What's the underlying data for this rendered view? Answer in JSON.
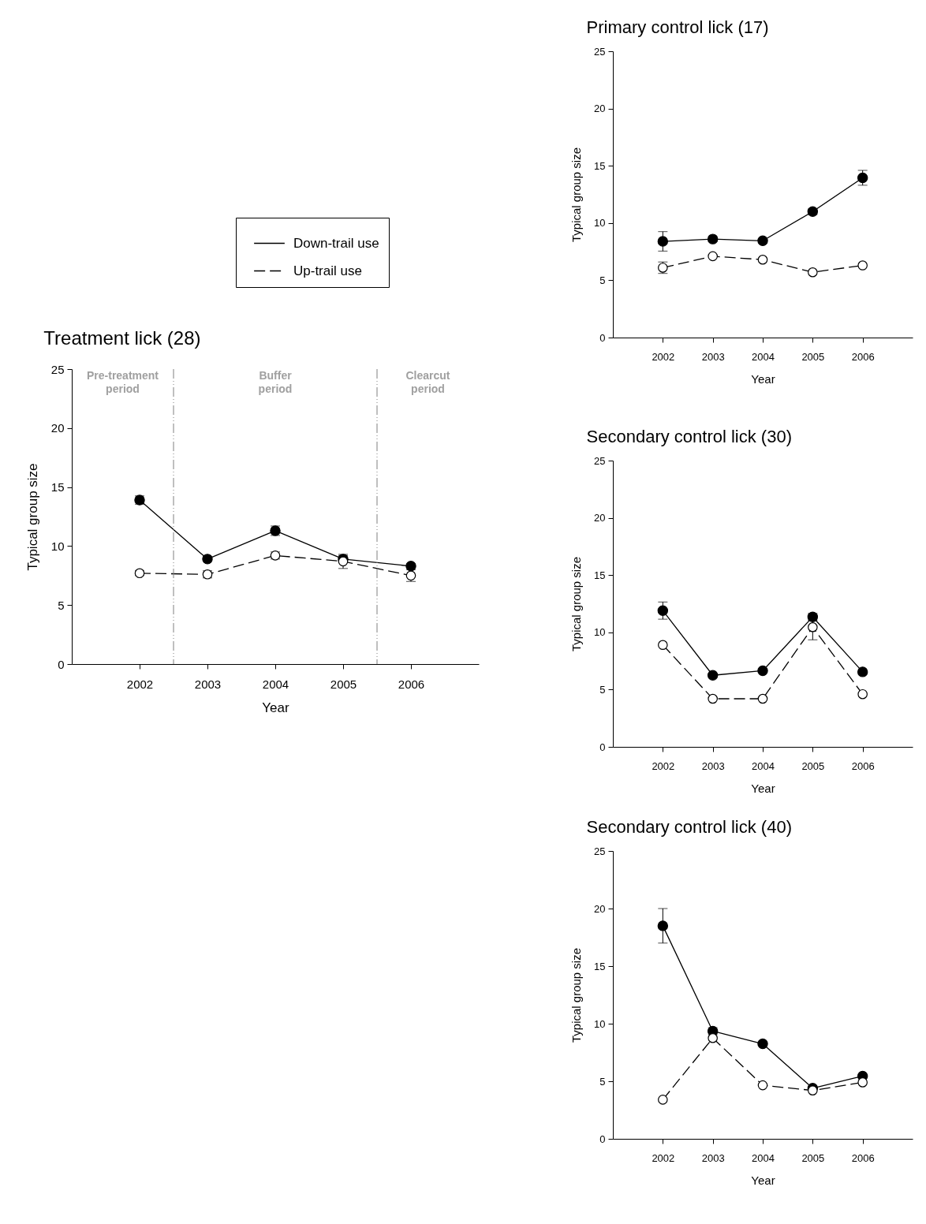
{
  "chart_data": [
    {
      "type": "line",
      "title": "Treatment lick (28)",
      "xlabel": "Year",
      "ylabel": "Typical group size",
      "x": [
        2002,
        2003,
        2004,
        2005,
        2006
      ],
      "xlim": [
        2001,
        2007
      ],
      "xticks": [
        2002,
        2003,
        2004,
        2005,
        2006
      ],
      "ylim": [
        0,
        25
      ],
      "yticks": [
        0,
        5,
        10,
        15,
        20,
        25
      ],
      "marker": "circle",
      "legend": "top right",
      "grid": false,
      "series": [
        {
          "name": "Down-trail use",
          "color": "#000000",
          "line_style": "solid",
          "values": [
            13.9,
            8.9,
            11.3,
            8.9,
            8.3
          ],
          "errors": [
            0.35,
            0.2,
            0.4,
            0.3,
            0.2
          ]
        },
        {
          "name": "Up-trail use",
          "color": "#000000",
          "line_style": "dashed",
          "values": [
            7.7,
            7.6,
            9.2,
            8.7,
            7.5
          ],
          "errors": [
            0.2,
            0.3,
            0.3,
            0.6,
            0.5
          ]
        }
      ],
      "ref_lines": [
        {
          "axis": "x",
          "value": 2002.5,
          "line_style": "dashed",
          "color": "#808080"
        },
        {
          "axis": "x",
          "value": 2005.5,
          "line_style": "dashed",
          "color": "#808080"
        }
      ],
      "annotations": [
        "Pre-treatment period",
        "Buffer period",
        "Clearcut period"
      ]
    },
    {
      "type": "line",
      "title": "Primary control lick (17)",
      "xlabel": "Year",
      "ylabel": "Typical group size",
      "x": [
        2002,
        2003,
        2004,
        2005,
        2006
      ],
      "xlim": [
        2001,
        2007
      ],
      "xticks": [
        2002,
        2003,
        2004,
        2005,
        2006
      ],
      "ylim": [
        0,
        25
      ],
      "yticks": [
        0,
        5,
        10,
        15,
        20,
        25
      ],
      "marker": "circle",
      "grid": false,
      "series": [
        {
          "color": "#000000",
          "line_style": "solid",
          "values": [
            8.4,
            8.6,
            8.45,
            11.0,
            13.95
          ],
          "errors": [
            0.85,
            0.2,
            0.2,
            0.25,
            0.65
          ]
        },
        {
          "color": "#000000",
          "line_style": "dashed",
          "values": [
            6.1,
            7.1,
            6.8,
            5.7,
            6.3
          ],
          "errors": [
            0.5,
            null,
            null,
            null,
            null
          ]
        }
      ]
    },
    {
      "type": "line",
      "title": "Secondary control lick (30)",
      "xlabel": "Year",
      "ylabel": "Typical group size",
      "x": [
        2002,
        2003,
        2004,
        2005,
        2006
      ],
      "xlim": [
        2001,
        2007
      ],
      "xticks": [
        2002,
        2003,
        2004,
        2005,
        2006
      ],
      "ylim": [
        0,
        25
      ],
      "yticks": [
        0,
        5,
        10,
        15,
        20,
        25
      ],
      "marker": "circle",
      "grid": false,
      "series": [
        {
          "color": "#000000",
          "line_style": "solid",
          "values": [
            11.9,
            6.25,
            6.65,
            11.35,
            6.55
          ],
          "errors": [
            0.75,
            null,
            null,
            0.3,
            null
          ]
        },
        {
          "color": "#000000",
          "line_style": "dashed",
          "values": [
            8.9,
            4.2,
            4.2,
            10.45,
            4.6
          ],
          "errors": [
            null,
            null,
            null,
            1.1,
            null
          ]
        }
      ]
    },
    {
      "type": "line",
      "title": "Secondary control lick (40)",
      "xlabel": "Year",
      "ylabel": "Typical group size",
      "x": [
        2002,
        2003,
        2004,
        2005,
        2006
      ],
      "xlim": [
        2001,
        2007
      ],
      "xticks": [
        2002,
        2003,
        2004,
        2005,
        2006
      ],
      "ylim": [
        0,
        25
      ],
      "yticks": [
        0,
        5,
        10,
        15,
        20,
        25
      ],
      "marker": "circle",
      "grid": false,
      "series": [
        {
          "color": "#000000",
          "line_style": "solid",
          "values": [
            18.5,
            9.35,
            8.25,
            4.4,
            5.45
          ],
          "errors": [
            1.5,
            0.3,
            null,
            null,
            null
          ]
        },
        {
          "color": "#000000",
          "line_style": "dashed",
          "values": [
            3.4,
            8.75,
            4.65,
            4.2,
            4.9
          ],
          "errors": [
            null,
            null,
            null,
            null,
            null
          ]
        }
      ]
    }
  ]
}
